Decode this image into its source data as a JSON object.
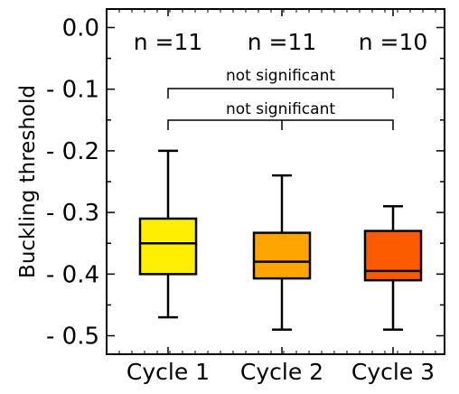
{
  "chart_data": {
    "type": "box",
    "ylabel": "Buckling threshold",
    "ylim": [
      -0.53,
      0.03
    ],
    "yticks": [
      {
        "value": 0.0,
        "label": "0.0"
      },
      {
        "value": -0.1,
        "label": "- 0.1"
      },
      {
        "value": -0.2,
        "label": "- 0.2"
      },
      {
        "value": -0.3,
        "label": "- 0.3"
      },
      {
        "value": -0.4,
        "label": "- 0.4"
      },
      {
        "value": -0.5,
        "label": "- 0.5"
      }
    ],
    "categories": [
      "Cycle 1",
      "Cycle 2",
      "Cycle 3"
    ],
    "boxes": [
      {
        "name": "Cycle 1",
        "whisker_low": -0.47,
        "q1": -0.4,
        "median": -0.35,
        "q3": -0.31,
        "whisker_high": -0.2,
        "n_label": "n =11",
        "color": "#ffee00"
      },
      {
        "name": "Cycle 2",
        "whisker_low": -0.49,
        "q1": -0.407,
        "median": -0.38,
        "q3": -0.333,
        "whisker_high": -0.24,
        "n_label": "n =11",
        "color": "#ffa500"
      },
      {
        "name": "Cycle 3",
        "whisker_low": -0.49,
        "q1": -0.41,
        "median": -0.395,
        "q3": -0.33,
        "whisker_high": -0.29,
        "n_label": "n =10",
        "color": "#ff5a00"
      }
    ],
    "significance": [
      {
        "from": 0,
        "to": 2,
        "label": "not significant",
        "level": 2
      },
      {
        "from": 0,
        "to": 1,
        "to2": 2,
        "label": "not significant",
        "level": 1
      }
    ]
  }
}
